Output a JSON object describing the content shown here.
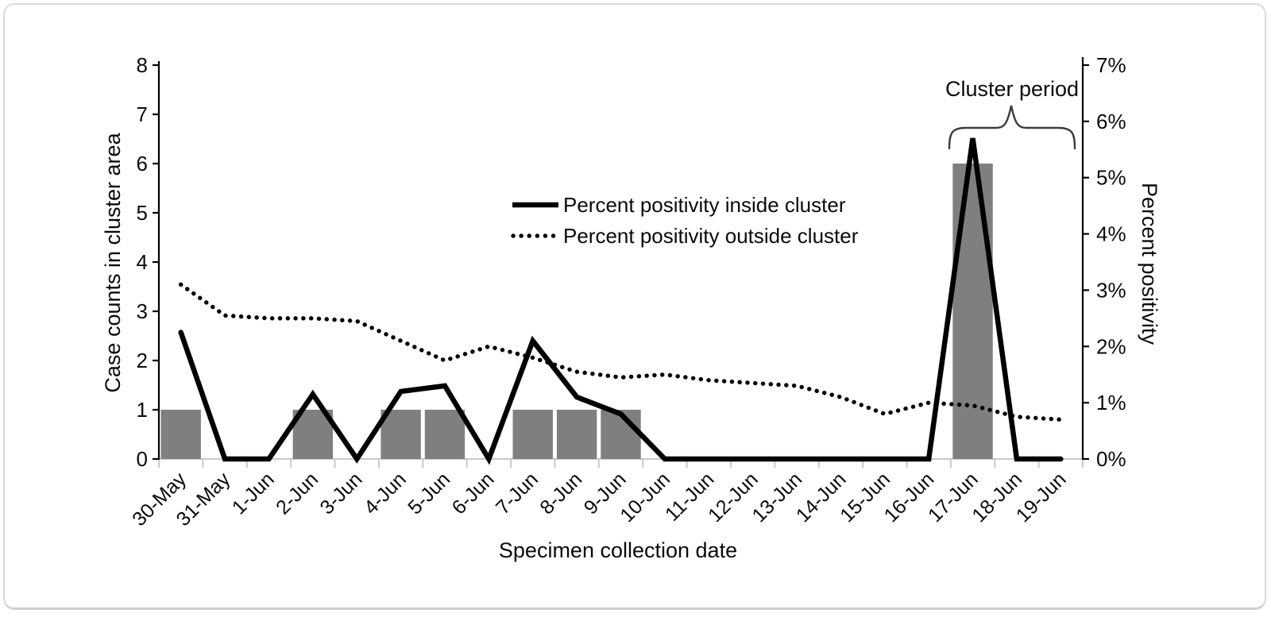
{
  "chart_data": {
    "type": "combo-bar-line",
    "categories": [
      "30-May",
      "31-May",
      "1-Jun",
      "2-Jun",
      "3-Jun",
      "4-Jun",
      "5-Jun",
      "6-Jun",
      "7-Jun",
      "8-Jun",
      "9-Jun",
      "10-Jun",
      "11-Jun",
      "12-Jun",
      "13-Jun",
      "14-Jun",
      "15-Jun",
      "16-Jun",
      "17-Jun",
      "18-Jun",
      "19-Jun"
    ],
    "x_axis": {
      "title": "Specimen collection date"
    },
    "left_axis": {
      "title": "Case counts in cluster area",
      "min": 0,
      "max": 8,
      "tick_labels": [
        "0",
        "1",
        "2",
        "3",
        "4",
        "5",
        "6",
        "7",
        "8"
      ]
    },
    "right_axis": {
      "title": "Percent positivity",
      "min": 0,
      "max": 7,
      "unit": "%",
      "tick_labels": [
        "0%",
        "1%",
        "2%",
        "3%",
        "4%",
        "5%",
        "6%",
        "7%"
      ]
    },
    "series": [
      {
        "name": "Case counts in cluster area",
        "type": "bar",
        "axis": "left",
        "color": "#7f7f7f",
        "values": [
          1,
          0,
          0,
          1,
          0,
          1,
          1,
          0,
          1,
          1,
          1,
          0,
          0,
          0,
          0,
          0,
          0,
          0,
          6,
          0,
          0
        ]
      },
      {
        "name": "Percent positivity inside cluster",
        "type": "line",
        "line_style": "solid",
        "axis": "right",
        "color": "#000000",
        "values": [
          2.25,
          0,
          0,
          1.15,
          0,
          1.2,
          1.3,
          0,
          2.1,
          1.1,
          0.8,
          0,
          0,
          0,
          0,
          0,
          0,
          0,
          5.7,
          0,
          0
        ]
      },
      {
        "name": "Percent positivity outside cluster",
        "type": "line",
        "line_style": "dotted",
        "axis": "right",
        "color": "#000000",
        "values": [
          3.1,
          2.55,
          2.5,
          2.5,
          2.45,
          2.1,
          1.75,
          2.0,
          1.8,
          1.55,
          1.45,
          1.5,
          1.4,
          1.35,
          1.3,
          1.1,
          0.8,
          1.0,
          0.95,
          0.75,
          0.7
        ]
      }
    ],
    "legend": {
      "position": "inside-top-center",
      "entries": [
        "Percent positivity inside cluster",
        "Percent positivity outside cluster"
      ]
    },
    "annotation": {
      "label": "Cluster period",
      "start_category": "17-Jun",
      "end_category": "19-Jun"
    },
    "grid": "off",
    "background": "#ffffff"
  }
}
